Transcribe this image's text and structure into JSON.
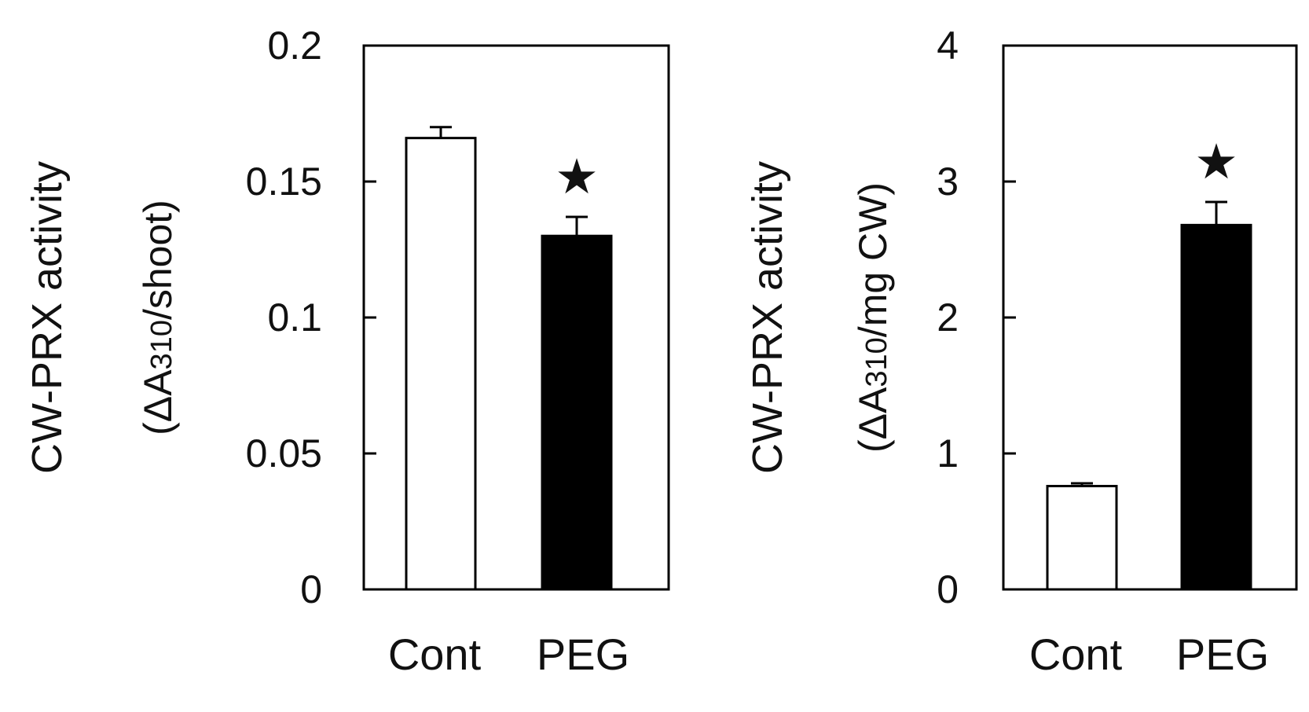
{
  "colors": {
    "axis": "#000000",
    "cont_fill": "#ffffff",
    "peg_fill": "#000000"
  },
  "chart_data": [
    {
      "type": "bar",
      "categories": [
        "Cont",
        "PEG"
      ],
      "values": [
        0.166,
        0.13
      ],
      "errors": [
        0.004,
        0.007
      ],
      "significance": [
        "",
        "★"
      ],
      "bar_colors": [
        "#ffffff",
        "#000000"
      ],
      "ylim": [
        0,
        0.2
      ],
      "yticks": [
        0,
        0.05,
        0.1,
        0.15,
        0.2
      ],
      "ytick_labels": [
        "0",
        "0.05",
        "0.1",
        "0.15",
        "0.2"
      ],
      "ylabel": "CW-PRX activity",
      "ylabel_unit": {
        "prefix": "(ΔA",
        "sub": "310",
        "suffix": "/shoot)"
      },
      "xlabel": "",
      "title": "",
      "grid": false,
      "legend": "none"
    },
    {
      "type": "bar",
      "categories": [
        "Cont",
        "PEG"
      ],
      "values": [
        0.76,
        2.68
      ],
      "errors": [
        0.02,
        0.17
      ],
      "significance": [
        "",
        "★"
      ],
      "bar_colors": [
        "#ffffff",
        "#000000"
      ],
      "ylim": [
        0,
        4
      ],
      "yticks": [
        0,
        1,
        2,
        3,
        4
      ],
      "ytick_labels": [
        "0",
        "1",
        "2",
        "3",
        "4"
      ],
      "ylabel": "CW-PRX activity",
      "ylabel_unit": {
        "prefix": "(ΔA",
        "sub": "310",
        "suffix": "/mg CW)"
      },
      "xlabel": "",
      "title": "",
      "grid": false,
      "legend": "none"
    }
  ]
}
